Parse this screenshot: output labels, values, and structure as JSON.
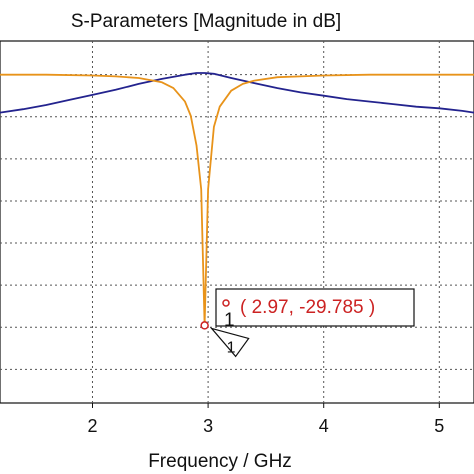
{
  "chart_data": {
    "type": "line",
    "title": "S-Parameters [Magnitude in dB]",
    "xlabel": "Frequency / GHz",
    "ylabel": "",
    "xlim": [
      1.2,
      5.3
    ],
    "ylim": [
      -39,
      4
    ],
    "x_ticks": [
      2,
      3,
      4,
      5
    ],
    "y_gridlines": [
      0,
      -5,
      -10,
      -15,
      -20,
      -25,
      -30,
      -35
    ],
    "grid": true,
    "series": [
      {
        "color": "#23238e",
        "x": [
          1.2,
          1.4,
          1.6,
          1.8,
          2.0,
          2.2,
          2.4,
          2.6,
          2.8,
          2.9,
          2.97,
          3.05,
          3.2,
          3.4,
          3.6,
          3.8,
          4.0,
          4.2,
          4.4,
          4.6,
          4.8,
          5.0,
          5.2,
          5.3
        ],
        "y": [
          -4.5,
          -4.1,
          -3.6,
          -3.0,
          -2.4,
          -1.8,
          -1.1,
          -0.5,
          0.0,
          0.2,
          0.2,
          0.1,
          -0.4,
          -1.0,
          -1.6,
          -2.1,
          -2.5,
          -2.9,
          -3.2,
          -3.5,
          -3.8,
          -4.0,
          -4.3,
          -4.5
        ]
      },
      {
        "color": "#e8931a",
        "x": [
          1.2,
          1.6,
          2.0,
          2.2,
          2.4,
          2.6,
          2.7,
          2.8,
          2.85,
          2.9,
          2.94,
          2.97,
          3.0,
          3.05,
          3.1,
          3.2,
          3.3,
          3.4,
          3.6,
          3.8,
          4.0,
          4.4,
          5.0,
          5.3
        ],
        "y": [
          0.0,
          0.0,
          -0.1,
          -0.2,
          -0.4,
          -0.9,
          -1.6,
          -3.2,
          -4.9,
          -8.4,
          -13.6,
          -29.785,
          -13.6,
          -6.2,
          -3.8,
          -1.9,
          -1.1,
          -0.7,
          -0.3,
          -0.2,
          -0.1,
          0.0,
          0.0,
          0.0
        ]
      }
    ],
    "marker": {
      "id": "1",
      "x": 2.97,
      "y": -29.785,
      "label": "( 2.97, -29.785 )",
      "color": "#cc2222"
    }
  }
}
